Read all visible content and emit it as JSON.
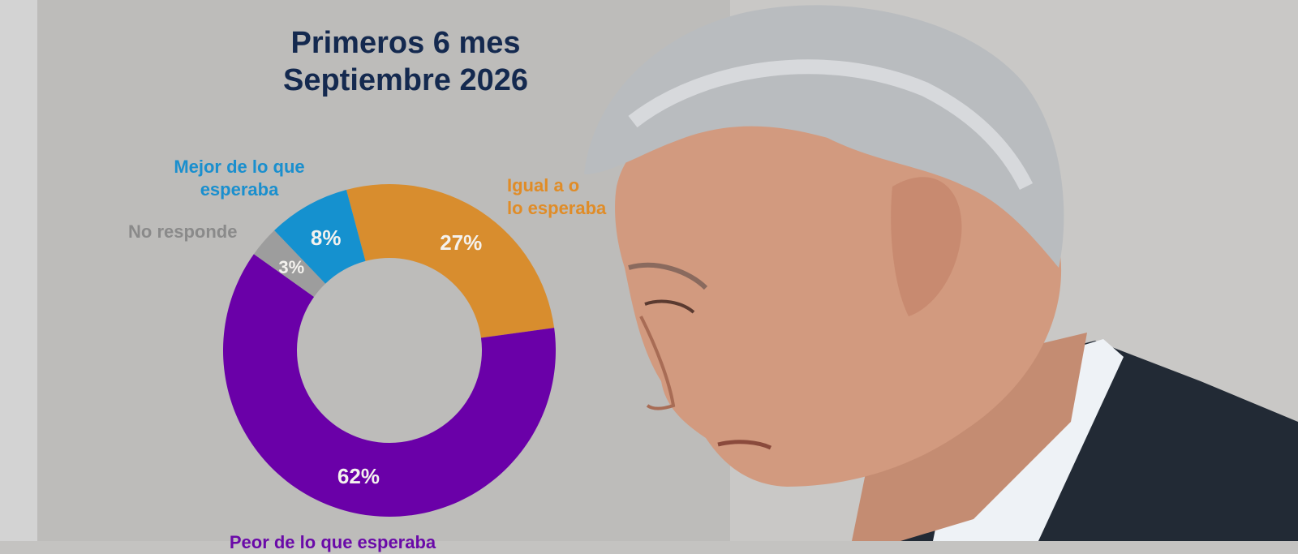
{
  "chart_data": {
    "type": "pie",
    "donut": true,
    "title": "Primeros 6 mes",
    "subtitle": "Septiembre 2026",
    "slices": [
      {
        "name": "Igual a o lo esperaba",
        "label_lines": [
          "Igual a o",
          "lo esperaba"
        ],
        "value": 27,
        "display": "27%",
        "color": "#d88d2e",
        "label_color": "#e08c27"
      },
      {
        "name": "Peor de lo que esperaba",
        "label_lines": [
          "Peor de lo que esperaba"
        ],
        "value": 62,
        "display": "62%",
        "color": "#6a00a8",
        "label_color": "#6a0aa8"
      },
      {
        "name": "No responde",
        "label_lines": [
          "No responde"
        ],
        "value": 3,
        "display": "3%",
        "color": "#9d9d9d",
        "label_color": "#8a8a8a"
      },
      {
        "name": "Mejor de lo que esperaba",
        "label_lines": [
          "Mejor de lo que",
          "esperaba"
        ],
        "value": 8,
        "display": "8%",
        "color": "#1591cf",
        "label_color": "#1a8fce"
      }
    ]
  },
  "colors": {
    "panel_bg": "#bdbcba",
    "title": "#14294f"
  },
  "photo": {
    "icon": "person-photo"
  }
}
